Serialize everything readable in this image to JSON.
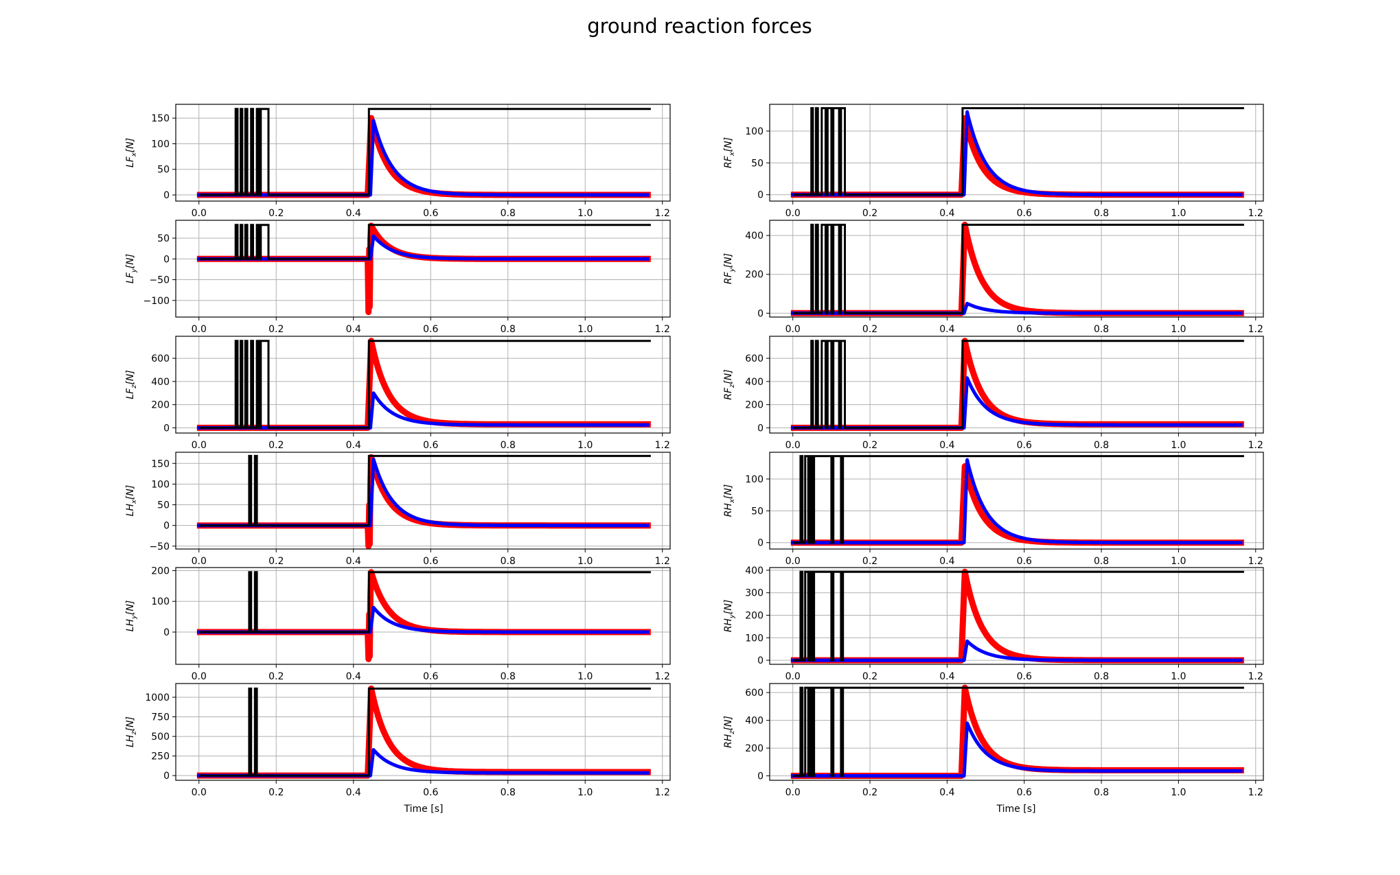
{
  "figure": {
    "title": "ground reaction forces",
    "xlabel": "Time [s]"
  },
  "chart_data": [
    {
      "type": "line",
      "name": "LFx",
      "ylabel_main": "LF",
      "ylabel_sub": "x",
      "ylabel_unit": "[N]",
      "xlim": [
        -0.06,
        1.22
      ],
      "ylim": [
        -12,
        177
      ],
      "xticks": [
        0.0,
        0.2,
        0.4,
        0.6,
        0.8,
        1.0,
        1.2
      ],
      "yticks": [
        0,
        50,
        100,
        150
      ],
      "peak": 168,
      "switch_times": [
        0.095,
        0.1,
        0.108,
        0.112,
        0.12,
        0.125,
        0.135,
        0.14,
        0.15,
        0.155,
        0.16,
        0.18
      ],
      "t_end": 1.17,
      "series": [
        {
          "color": "#ff0000",
          "peak": 150,
          "settle": 0
        },
        {
          "color": "#0000ff",
          "peak": 145,
          "settle": 0
        }
      ],
      "grid": true
    },
    {
      "type": "line",
      "name": "RFx",
      "ylabel_main": "RF",
      "ylabel_sub": "x",
      "ylabel_unit": "[N]",
      "xlim": [
        -0.06,
        1.22
      ],
      "ylim": [
        -10,
        142
      ],
      "xticks": [
        0.0,
        0.2,
        0.4,
        0.6,
        0.8,
        1.0,
        1.2
      ],
      "yticks": [
        0,
        50,
        100
      ],
      "peak": 136,
      "switch_times": [
        0.048,
        0.052,
        0.06,
        0.065,
        0.075,
        0.085,
        0.09,
        0.1,
        0.105,
        0.12,
        0.125,
        0.135
      ],
      "t_end": 1.17,
      "series": [
        {
          "color": "#ff0000",
          "peak": 120,
          "settle": 0
        },
        {
          "color": "#0000ff",
          "peak": 130,
          "settle": 0
        }
      ],
      "grid": true
    },
    {
      "type": "line",
      "name": "LFy",
      "ylabel_main": "LF",
      "ylabel_sub": "y",
      "ylabel_unit": "[N]",
      "xlim": [
        -0.06,
        1.22
      ],
      "ylim": [
        -140,
        93
      ],
      "xticks": [
        0.0,
        0.2,
        0.4,
        0.6,
        0.8,
        1.0,
        1.2
      ],
      "yticks": [
        -100,
        -50,
        0,
        50
      ],
      "peak": 82,
      "switch_times": [
        0.095,
        0.1,
        0.108,
        0.112,
        0.12,
        0.125,
        0.135,
        0.14,
        0.15,
        0.155,
        0.16,
        0.18
      ],
      "t_end": 1.17,
      "series": [
        {
          "color": "#ff0000",
          "peak": 80,
          "settle": 0,
          "dip": -128
        },
        {
          "color": "#0000ff",
          "peak": 55,
          "settle": 0
        }
      ],
      "grid": true
    },
    {
      "type": "line",
      "name": "RFy",
      "ylabel_main": "RF",
      "ylabel_sub": "y",
      "ylabel_unit": "[N]",
      "xlim": [
        -0.06,
        1.22
      ],
      "ylim": [
        -20,
        478
      ],
      "xticks": [
        0.0,
        0.2,
        0.4,
        0.6,
        0.8,
        1.0,
        1.2
      ],
      "yticks": [
        0,
        200,
        400
      ],
      "peak": 455,
      "switch_times": [
        0.048,
        0.052,
        0.06,
        0.065,
        0.075,
        0.085,
        0.09,
        0.1,
        0.105,
        0.12,
        0.125,
        0.135
      ],
      "t_end": 1.17,
      "series": [
        {
          "color": "#ff0000",
          "peak": 455,
          "settle": 0
        },
        {
          "color": "#0000ff",
          "peak": 50,
          "settle": 0
        }
      ],
      "grid": true
    },
    {
      "type": "line",
      "name": "LFz",
      "ylabel_main": "LF",
      "ylabel_sub": "z",
      "ylabel_unit": "[N]",
      "xlim": [
        -0.06,
        1.22
      ],
      "ylim": [
        -45,
        790
      ],
      "xticks": [
        0.0,
        0.2,
        0.4,
        0.6,
        0.8,
        1.0,
        1.2
      ],
      "yticks": [
        0,
        200,
        400,
        600
      ],
      "peak": 750,
      "switch_times": [
        0.095,
        0.1,
        0.108,
        0.112,
        0.12,
        0.125,
        0.135,
        0.14,
        0.15,
        0.155,
        0.16,
        0.18
      ],
      "t_end": 1.17,
      "series": [
        {
          "color": "#ff0000",
          "peak": 750,
          "settle": 30
        },
        {
          "color": "#0000ff",
          "peak": 300,
          "settle": 25
        }
      ],
      "grid": true
    },
    {
      "type": "line",
      "name": "RFz",
      "ylabel_main": "RF",
      "ylabel_sub": "z",
      "ylabel_unit": "[N]",
      "xlim": [
        -0.06,
        1.22
      ],
      "ylim": [
        -45,
        790
      ],
      "xticks": [
        0.0,
        0.2,
        0.4,
        0.6,
        0.8,
        1.0,
        1.2
      ],
      "yticks": [
        0,
        200,
        400,
        600
      ],
      "peak": 750,
      "switch_times": [
        0.048,
        0.052,
        0.06,
        0.065,
        0.075,
        0.085,
        0.09,
        0.1,
        0.105,
        0.12,
        0.125,
        0.135
      ],
      "t_end": 1.17,
      "series": [
        {
          "color": "#ff0000",
          "peak": 750,
          "settle": 30
        },
        {
          "color": "#0000ff",
          "peak": 430,
          "settle": 25
        }
      ],
      "grid": true
    },
    {
      "type": "line",
      "name": "LHx",
      "ylabel_main": "LH",
      "ylabel_sub": "x",
      "ylabel_unit": "[N]",
      "xlim": [
        -0.06,
        1.22
      ],
      "ylim": [
        -57,
        177
      ],
      "xticks": [
        0.0,
        0.2,
        0.4,
        0.6,
        0.8,
        1.0,
        1.2
      ],
      "yticks": [
        -50,
        0,
        50,
        100,
        150
      ],
      "peak": 168,
      "switch_times": [
        0.13,
        0.135,
        0.145,
        0.15
      ],
      "t_end": 1.17,
      "series": [
        {
          "color": "#ff0000",
          "peak": 165,
          "settle": 0,
          "dip": -50
        },
        {
          "color": "#0000ff",
          "peak": 160,
          "settle": 0
        }
      ],
      "grid": true
    },
    {
      "type": "line",
      "name": "RHx",
      "ylabel_main": "RH",
      "ylabel_sub": "x",
      "ylabel_unit": "[N]",
      "xlim": [
        -0.06,
        1.22
      ],
      "ylim": [
        -10,
        142
      ],
      "xticks": [
        0.0,
        0.2,
        0.4,
        0.6,
        0.8,
        1.0,
        1.2
      ],
      "yticks": [
        0,
        50,
        100
      ],
      "peak": 136,
      "switch_times": [
        0.02,
        0.025,
        0.032,
        0.04,
        0.045,
        0.05,
        0.055,
        0.1,
        0.105,
        0.125,
        0.13
      ],
      "t_end": 1.17,
      "series": [
        {
          "color": "#ff0000",
          "peak": 120,
          "settle": 0
        },
        {
          "color": "#0000ff",
          "peak": 130,
          "settle": 0
        }
      ],
      "grid": true
    },
    {
      "type": "line",
      "name": "LHy",
      "ylabel_main": "LH",
      "ylabel_sub": "y",
      "ylabel_unit": "[N]",
      "xlim": [
        -0.06,
        1.22
      ],
      "ylim": [
        -105,
        210
      ],
      "xticks": [
        0.0,
        0.2,
        0.4,
        0.6,
        0.8,
        1.0,
        1.2
      ],
      "yticks": [
        0,
        100,
        200
      ],
      "peak": 195,
      "switch_times": [
        0.13,
        0.135,
        0.145,
        0.15
      ],
      "t_end": 1.17,
      "series": [
        {
          "color": "#ff0000",
          "peak": 195,
          "settle": 0,
          "dip": -88
        },
        {
          "color": "#0000ff",
          "peak": 80,
          "settle": 0
        }
      ],
      "grid": true
    },
    {
      "type": "line",
      "name": "RHy",
      "ylabel_main": "RH",
      "ylabel_sub": "y",
      "ylabel_unit": "[N]",
      "xlim": [
        -0.06,
        1.22
      ],
      "ylim": [
        -18,
        412
      ],
      "xticks": [
        0.0,
        0.2,
        0.4,
        0.6,
        0.8,
        1.0,
        1.2
      ],
      "yticks": [
        0,
        100,
        200,
        300,
        400
      ],
      "peak": 393,
      "switch_times": [
        0.02,
        0.025,
        0.032,
        0.04,
        0.045,
        0.05,
        0.055,
        0.1,
        0.105,
        0.125,
        0.13
      ],
      "t_end": 1.17,
      "series": [
        {
          "color": "#ff0000",
          "peak": 393,
          "settle": 0
        },
        {
          "color": "#0000ff",
          "peak": 85,
          "settle": 0
        }
      ],
      "grid": true
    },
    {
      "type": "line",
      "name": "LHz",
      "ylabel_main": "LH",
      "ylabel_sub": "z",
      "ylabel_unit": "[N]",
      "xlim": [
        -0.06,
        1.22
      ],
      "ylim": [
        -60,
        1175
      ],
      "xticks": [
        0.0,
        0.2,
        0.4,
        0.6,
        0.8,
        1.0,
        1.2
      ],
      "yticks": [
        0,
        250,
        500,
        750,
        1000
      ],
      "peak": 1110,
      "switch_times": [
        0.13,
        0.135,
        0.145,
        0.15
      ],
      "t_end": 1.17,
      "series": [
        {
          "color": "#ff0000",
          "peak": 1110,
          "settle": 45
        },
        {
          "color": "#0000ff",
          "peak": 330,
          "settle": 35
        }
      ],
      "grid": true
    },
    {
      "type": "line",
      "name": "RHz",
      "ylabel_main": "RH",
      "ylabel_sub": "z",
      "ylabel_unit": "[N]",
      "xlim": [
        -0.06,
        1.22
      ],
      "ylim": [
        -32,
        665
      ],
      "xticks": [
        0.0,
        0.2,
        0.4,
        0.6,
        0.8,
        1.0,
        1.2
      ],
      "yticks": [
        0,
        200,
        400,
        600
      ],
      "peak": 635,
      "switch_times": [
        0.02,
        0.025,
        0.032,
        0.04,
        0.045,
        0.05,
        0.055,
        0.1,
        0.105,
        0.125,
        0.13
      ],
      "t_end": 1.17,
      "series": [
        {
          "color": "#ff0000",
          "peak": 635,
          "settle": 40
        },
        {
          "color": "#0000ff",
          "peak": 380,
          "settle": 35
        }
      ],
      "grid": true
    }
  ]
}
